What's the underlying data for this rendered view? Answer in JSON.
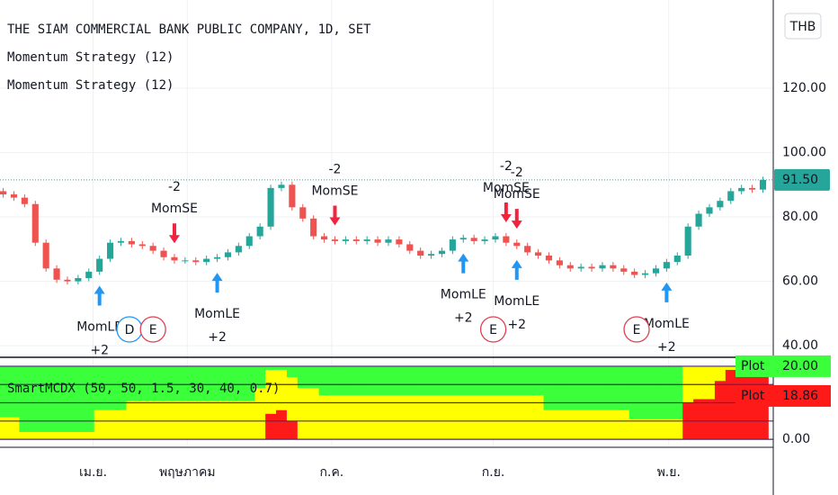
{
  "chart_data": [
    {
      "type": "candlestick",
      "legend": [
        "THE SIAM COMMERCIAL BANK PUBLIC COMPANY, 1D, SET",
        "Momentum Strategy (12)",
        "Momentum Strategy (12)"
      ],
      "currency": "THB",
      "open": [
        88,
        87,
        86,
        84,
        72,
        64,
        60.5,
        60,
        61,
        63,
        67,
        72,
        72.5,
        71.5,
        71,
        69.5,
        67.5,
        66.5,
        66.5,
        66,
        67,
        67.5,
        69,
        71,
        74,
        77,
        89,
        90,
        83,
        79.5,
        74,
        73,
        72.5,
        73,
        72.5,
        73,
        72,
        73,
        71.5,
        69.5,
        68,
        68.5,
        69.5,
        73,
        73.5,
        72.5,
        73,
        74,
        72,
        71,
        69,
        68,
        66.5,
        65,
        64,
        64.5,
        64,
        65,
        64,
        63,
        62,
        62.5,
        64,
        66,
        68,
        77,
        81,
        83,
        85,
        88,
        89,
        88.5
      ],
      "high": [
        89,
        88,
        87,
        85,
        73,
        65,
        61.5,
        62,
        64,
        68,
        73,
        73.5,
        73.5,
        72.5,
        72,
        70.5,
        68.5,
        67.5,
        67.5,
        68,
        68.5,
        70,
        72,
        75,
        78,
        90,
        91,
        91,
        84,
        80.5,
        75,
        74,
        74,
        74,
        74,
        74,
        74,
        74,
        72.5,
        70.5,
        69.5,
        70.5,
        74,
        74.5,
        74.5,
        74,
        75,
        75,
        73,
        72,
        70,
        69,
        67.5,
        66,
        65.5,
        65.5,
        66,
        66,
        65,
        64,
        63.5,
        65,
        67,
        69,
        78,
        82,
        84,
        86,
        89,
        90,
        90,
        92.5
      ],
      "low": [
        86,
        85,
        83,
        71,
        63,
        59.5,
        59,
        59,
        60,
        62,
        66,
        71,
        70.5,
        70,
        68.5,
        66.5,
        65.5,
        65.5,
        65,
        65,
        66,
        66.5,
        68,
        70,
        73,
        76,
        88,
        82,
        78.5,
        73,
        72,
        71.5,
        71.5,
        71.5,
        71.5,
        71,
        71,
        70.5,
        68.5,
        67,
        67,
        67.5,
        68.5,
        72,
        71.5,
        71.5,
        72,
        71,
        70,
        68,
        67,
        65.5,
        64,
        63,
        63,
        63,
        63,
        63,
        62,
        61,
        61,
        61.5,
        63,
        65,
        67,
        76,
        80,
        82,
        84,
        87,
        87.5,
        87.5
      ],
      "close": [
        87,
        86,
        84,
        72,
        64,
        60.5,
        60,
        61,
        63,
        67,
        72,
        72.5,
        71.5,
        71,
        69.5,
        67.5,
        66.5,
        66.5,
        66,
        67,
        67.5,
        69,
        71,
        74,
        77,
        89,
        90,
        83,
        79.5,
        74,
        73,
        72.5,
        73,
        72.5,
        73,
        72,
        73,
        71.5,
        69.5,
        68,
        68.5,
        69.5,
        73,
        73.5,
        72.5,
        73,
        74,
        72,
        71,
        69,
        68,
        66.5,
        65,
        64,
        64.5,
        64,
        65,
        64,
        63,
        62,
        62.5,
        64,
        66,
        68,
        77,
        81,
        83,
        85,
        88,
        89,
        88.5,
        91.5
      ],
      "up_color": "#26a69a",
      "down_color": "#ef5350",
      "xlim": [
        -0.3,
        71.8
      ],
      "xticks": [
        {
          "value": 8.4,
          "label": "เม.ย."
        },
        {
          "value": 17.2,
          "label": "พฤษภาคม"
        },
        {
          "value": 30.7,
          "label": "ก.ค."
        },
        {
          "value": 45.8,
          "label": "ก.ย."
        },
        {
          "value": 62.2,
          "label": "พ.ย."
        }
      ],
      "ylim": [
        36.4,
        147.4
      ],
      "yticks": [
        {
          "value": 40,
          "label": "40.00"
        },
        {
          "value": 60,
          "label": "60.00"
        },
        {
          "value": 80,
          "label": "80.00"
        },
        {
          "value": 100,
          "label": "100.00"
        },
        {
          "value": 120,
          "label": "120.00"
        }
      ],
      "grid": true,
      "last_price": 91.5,
      "last_price_label": "91.50",
      "last_price_color": "#26a69a",
      "signals": [
        {
          "index": 9,
          "name": "MomLE",
          "qty": "+2",
          "side": "long"
        },
        {
          "index": 16,
          "name": "MomSE",
          "qty": "-2",
          "side": "short"
        },
        {
          "index": 20,
          "name": "MomLE",
          "qty": "+2",
          "side": "long"
        },
        {
          "index": 31,
          "name": "MomSE",
          "qty": "-2",
          "side": "short"
        },
        {
          "index": 43,
          "name": "MomLE",
          "qty": "+2",
          "side": "long"
        },
        {
          "index": 47,
          "name": "MomSE",
          "qty": "-2",
          "side": "short"
        },
        {
          "index": 48,
          "name": "MomSE",
          "qty": "-2",
          "side": "short"
        },
        {
          "index": 48,
          "name": "MomLE",
          "qty": "+2",
          "side": "long"
        },
        {
          "index": 62,
          "name": "MomLE",
          "qty": "+2",
          "side": "long"
        }
      ],
      "long_color": "#2196f3",
      "short_color": "#f0243f",
      "events": [
        {
          "index": 11.8,
          "label": "D",
          "color": "#2196f3"
        },
        {
          "index": 14,
          "label": "E",
          "color": "#e04050"
        },
        {
          "index": 45.8,
          "label": "E",
          "color": "#e04050"
        },
        {
          "index": 59.2,
          "label": "E",
          "color": "#e04050"
        }
      ]
    },
    {
      "type": "stacked-bar",
      "title": "SmartMCDX (50, 50, 1.5, 30, 40, 0.7)",
      "series": [
        {
          "color": "#ff1a1a",
          "values": [
            0,
            0,
            0,
            0,
            0,
            0,
            0,
            0,
            0,
            0,
            0,
            0,
            0,
            0,
            0,
            0,
            0,
            0,
            0,
            0,
            0,
            0,
            0,
            0,
            0,
            7,
            8,
            5,
            0,
            0,
            0,
            0,
            0,
            0,
            0,
            0,
            0,
            0,
            0,
            0,
            0,
            0,
            0,
            0,
            0,
            0,
            0,
            0,
            0,
            0,
            0,
            0,
            0,
            0,
            0,
            0,
            0,
            0,
            0,
            0,
            0,
            0,
            0,
            0,
            10,
            11,
            11,
            16,
            19,
            19,
            19,
            19
          ]
        },
        {
          "color": "#ffff00",
          "values": [
            6,
            6,
            2,
            2,
            2,
            2,
            2,
            2,
            2,
            8,
            8,
            8,
            10.5,
            10.5,
            10.5,
            10.5,
            10.5,
            10.5,
            10.5,
            10.5,
            10.5,
            10.5,
            10.5,
            10.5,
            14,
            12,
            11,
            12,
            14,
            14,
            12,
            12,
            12,
            12,
            12,
            12,
            12,
            12,
            12,
            12,
            12,
            12,
            12,
            12,
            12,
            12,
            12,
            12,
            12,
            12,
            12,
            8,
            8,
            8,
            8,
            8,
            8,
            8,
            8,
            5.5,
            5.5,
            5.5,
            5.5,
            5.5,
            10,
            9,
            9,
            4,
            1,
            1,
            1,
            1
          ]
        },
        {
          "color": "#3cff3c",
          "values": [
            14,
            14,
            18,
            18,
            18,
            18,
            18,
            18,
            18,
            12,
            12,
            12,
            9.5,
            9.5,
            9.5,
            9.5,
            9.5,
            9.5,
            9.5,
            9.5,
            9.5,
            9.5,
            9.5,
            9.5,
            6,
            1,
            1,
            3,
            6,
            6,
            8,
            8,
            8,
            8,
            8,
            8,
            8,
            8,
            8,
            8,
            8,
            8,
            8,
            8,
            8,
            8,
            8,
            8,
            8,
            8,
            8,
            12,
            12,
            12,
            12,
            12,
            12,
            12,
            12,
            14.5,
            14.5,
            14.5,
            14.5,
            14.5,
            0,
            0,
            0,
            0,
            0,
            0,
            0,
            0
          ]
        }
      ],
      "ylim": [
        -1.7,
        22.2
      ],
      "yticks": [
        {
          "value": 0,
          "label": "0.00"
        },
        {
          "value": 20,
          "label": "20.00"
        }
      ],
      "hlines": [
        0,
        5,
        10,
        15,
        20
      ],
      "hline_color": "#4b2a6e",
      "last_labels": [
        {
          "name": "Plot",
          "value": 20,
          "value_label": "20.00",
          "color": "#3cff3c"
        },
        {
          "name": "Plot",
          "value": 18.86,
          "value_label": "18.86",
          "color": "#ff1a1a"
        }
      ]
    }
  ]
}
